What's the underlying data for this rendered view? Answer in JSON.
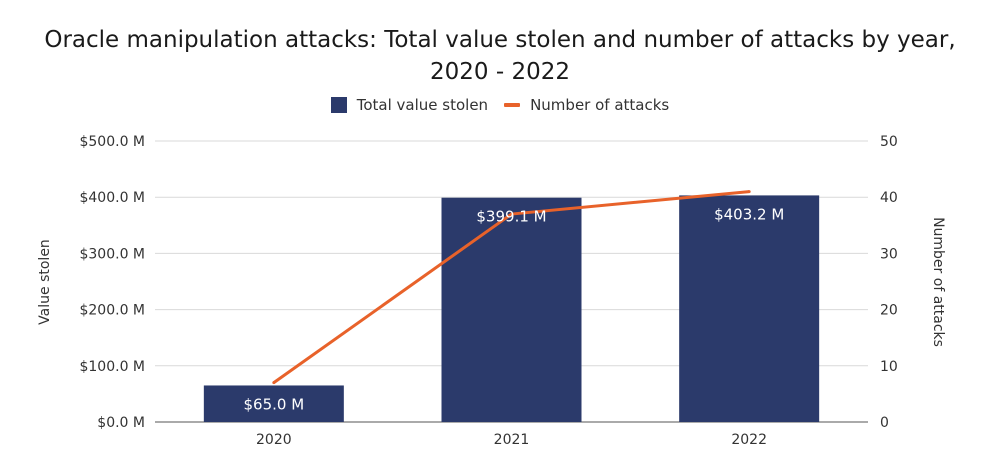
{
  "chart_data": {
    "type": "bar",
    "title_line1": "Oracle manipulation attacks: Total value stolen and number of attacks by year,",
    "title_line2": "2020 - 2022",
    "categories": [
      "2020",
      "2021",
      "2022"
    ],
    "series": [
      {
        "name": "Total value stolen",
        "type": "bar",
        "axis": "left",
        "values": [
          65.0,
          399.1,
          403.2
        ],
        "labels": [
          "$65.0 M",
          "$399.1 M",
          "$403.2 M"
        ],
        "color": "#2b3a6b"
      },
      {
        "name": "Number of attacks",
        "type": "line",
        "axis": "right",
        "values": [
          7,
          37,
          41
        ],
        "color": "#e8622a"
      }
    ],
    "ylabel_left": "Value stolen",
    "ylabel_right": "Number of attacks",
    "ylim_left": [
      0,
      500
    ],
    "ylim_right": [
      0,
      50
    ],
    "yticks_left": [
      "$0.0 M",
      "$100.0 M",
      "$200.0 M",
      "$300.0 M",
      "$400.0 M",
      "$500.0 M"
    ],
    "yticks_right": [
      "0",
      "10",
      "20",
      "30",
      "40",
      "50"
    ],
    "legend_position": "top-center",
    "grid": true,
    "gridline_color": "#d9d9d9",
    "data_label_color": "#ffffff"
  }
}
